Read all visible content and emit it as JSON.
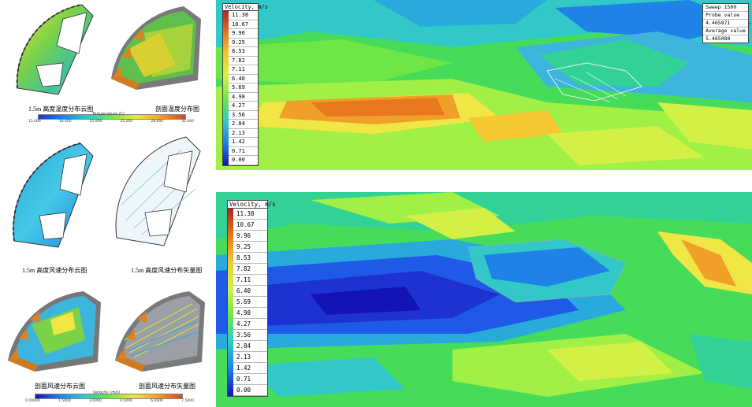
{
  "left": {
    "captions": {
      "temp_15m": "1.5m 高度温度分布云图",
      "temp_section": "剖面温度分布图",
      "wind_15m_contour": "1.5m 高度风速分布云图",
      "wind_15m_vector": "1.5m 高度风速分布矢量图",
      "wind_section_contour": "剖面风速分布云图",
      "wind_section_vector": "剖面风速分布矢量图"
    },
    "temp_colorbar": {
      "title": "Temperature (C)",
      "ticks": [
        "15.000",
        "18.400",
        "21.800",
        "25.200",
        "28.600",
        "32.000"
      ]
    },
    "velocity_colorbar": {
      "title": "Velocity (m/s)",
      "ticks": [
        "0.00000",
        "1.5000",
        "3.0000",
        "4.5000",
        "6.0000",
        "7.5000"
      ]
    }
  },
  "top_panel": {
    "legend_title": "Velocity, m/s",
    "legend_values": [
      "11.38",
      "10.67",
      "9.96",
      "9.25",
      "8.53",
      "7.82",
      "7.11",
      "6.40",
      "5.69",
      "4.98",
      "4.27",
      "3.56",
      "2.84",
      "2.13",
      "1.42",
      "0.71",
      "0.00"
    ],
    "probe": {
      "sweep": "Sweep 1500",
      "probe_label": "Probe value",
      "probe_value": "4.465871",
      "avg_label": "Average value",
      "avg_value": "5.465080"
    }
  },
  "bottom_panel": {
    "legend_title": "Velocity, m/s",
    "legend_values": [
      "11.38",
      "10.67",
      "9.96",
      "9.25",
      "8.53",
      "7.82",
      "7.11",
      "6.40",
      "5.69",
      "4.98",
      "4.27",
      "3.56",
      "2.84",
      "2.13",
      "1.42",
      "0.71",
      "0.00"
    ]
  },
  "colors": {
    "legend_scale": [
      "#b22222",
      "#d2481e",
      "#e8781e",
      "#f0a028",
      "#f5c832",
      "#f0e646",
      "#d2f046",
      "#a0f046",
      "#6ee646",
      "#46dc5a",
      "#32d296",
      "#32c8c8",
      "#28aadc",
      "#1e82e6",
      "#1e5ae6",
      "#1e32d2",
      "#1414b4"
    ]
  }
}
